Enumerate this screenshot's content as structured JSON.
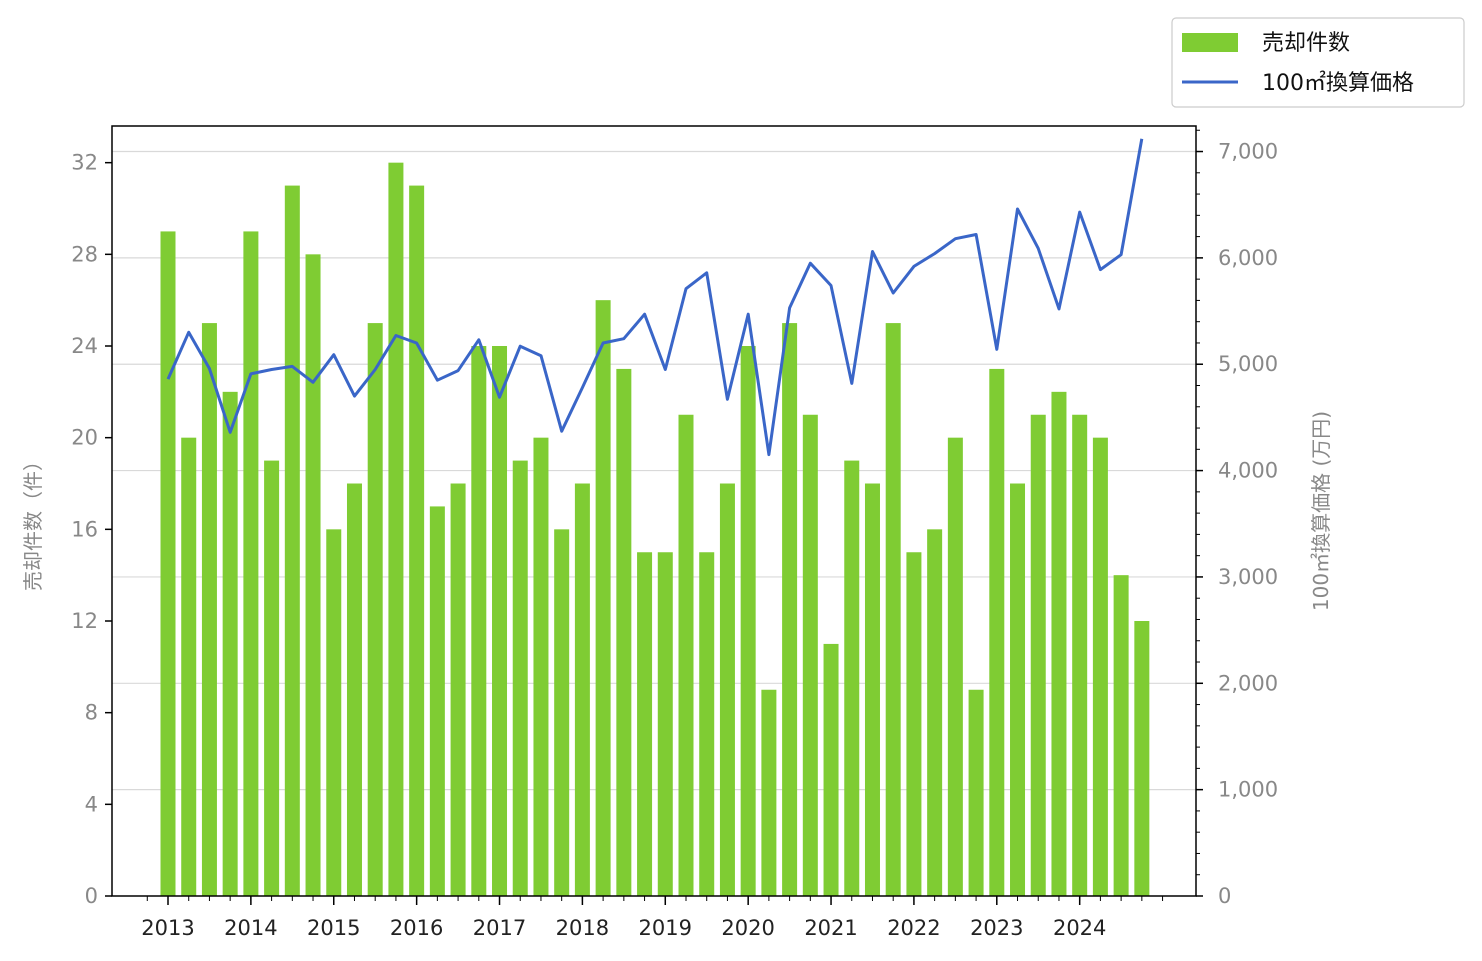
{
  "chart_data": {
    "type": "bar+line",
    "title": "",
    "x_tick_labels": [
      "2013",
      "2014",
      "2015",
      "2016",
      "2017",
      "2018",
      "2019",
      "2020",
      "2021",
      "2022",
      "2023",
      "2024"
    ],
    "ylabel_left": "売却件数（件）",
    "ylabel_right": "100㎡換算価格 (万円)",
    "ylim_left": [
      0,
      33.6
    ],
    "yticks_left": [
      0,
      4,
      8,
      12,
      16,
      20,
      24,
      28,
      32
    ],
    "ylim_right": [
      0,
      7240
    ],
    "yticks_right": [
      0,
      1000,
      2000,
      3000,
      4000,
      5000,
      6000,
      7000
    ],
    "yticks_right_labels": [
      "0",
      "1,000",
      "2,000",
      "3,000",
      "4,000",
      "5,000",
      "6,000",
      "7,000"
    ],
    "grid": "horizontal (right axis)",
    "legend_position": "top-right",
    "series": [
      {
        "name": "売却件数",
        "type": "bar",
        "axis": "left",
        "color": "#7fcc33",
        "values": [
          29,
          20,
          25,
          22,
          29,
          19,
          31,
          28,
          16,
          18,
          25,
          32,
          31,
          17,
          18,
          24,
          24,
          19,
          20,
          16,
          18,
          26,
          23,
          15,
          15,
          21,
          15,
          18,
          24,
          9,
          25,
          21,
          11,
          19,
          18,
          25,
          15,
          16,
          20,
          9,
          23,
          18,
          21,
          22,
          21,
          20,
          14,
          12
        ]
      },
      {
        "name": "100㎡換算価格",
        "type": "line",
        "axis": "right",
        "color": "#3a66c8",
        "values": [
          4860,
          5300,
          4960,
          4360,
          4910,
          4950,
          4980,
          4830,
          5090,
          4700,
          4950,
          5270,
          5200,
          4850,
          4940,
          5230,
          4690,
          5170,
          5080,
          4370,
          4780,
          5200,
          5240,
          5470,
          4950,
          5710,
          5860,
          4670,
          5470,
          4150,
          5530,
          5950,
          5740,
          4820,
          6060,
          5670,
          5920,
          6040,
          6180,
          6220,
          5140,
          6460,
          6090,
          5520,
          6430,
          5890,
          6030,
          7120
        ]
      }
    ]
  }
}
